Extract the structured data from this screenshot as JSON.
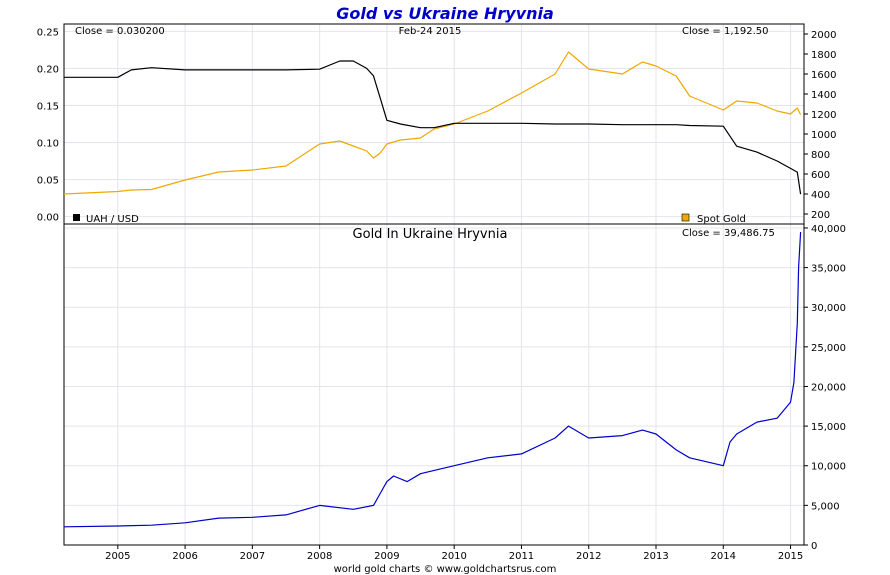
{
  "chart_data": [
    {
      "type": "line",
      "title": "Gold vs Ukraine Hryvnia",
      "date_label": "Feb-24  2015",
      "left_close_label": "Close = 0.030200",
      "right_close_label": "Close = 1,192.50",
      "x_ticks": [
        "2005",
        "2006",
        "2007",
        "2008",
        "2009",
        "2010",
        "2011",
        "2012",
        "2013",
        "2014",
        "2015"
      ],
      "x": [
        2004.2,
        2005.0,
        2005.2,
        2005.5,
        2006.0,
        2006.5,
        2007.0,
        2007.5,
        2008.0,
        2008.3,
        2008.5,
        2008.7,
        2008.8,
        2008.9,
        2009.0,
        2009.2,
        2009.5,
        2009.7,
        2010.0,
        2010.5,
        2011.0,
        2011.5,
        2011.7,
        2012.0,
        2012.5,
        2012.8,
        2013.0,
        2013.3,
        2013.5,
        2014.0,
        2014.2,
        2014.5,
        2014.8,
        2015.0,
        2015.1,
        2015.15
      ],
      "left_axis": {
        "ylim": [
          -0.01,
          0.26
        ],
        "ticks": [
          "0.00",
          "0.05",
          "0.10",
          "0.15",
          "0.20",
          "0.25"
        ],
        "tick_values": [
          0,
          0.05,
          0.1,
          0.15,
          0.2,
          0.25
        ]
      },
      "right_axis": {
        "ylim": [
          100,
          2100
        ],
        "ticks": [
          "200",
          "400",
          "600",
          "800",
          "1000",
          "1200",
          "1400",
          "1600",
          "1800",
          "2000"
        ],
        "tick_values": [
          200,
          400,
          600,
          800,
          1000,
          1200,
          1400,
          1600,
          1800,
          2000
        ]
      },
      "series": [
        {
          "name": "UAH / USD",
          "axis": "left",
          "color": "#000000",
          "values": [
            0.188,
            0.188,
            0.198,
            0.201,
            0.198,
            0.198,
            0.198,
            0.198,
            0.199,
            0.21,
            0.21,
            0.2,
            0.19,
            0.16,
            0.13,
            0.125,
            0.12,
            0.12,
            0.126,
            0.126,
            0.126,
            0.125,
            0.125,
            0.125,
            0.124,
            0.124,
            0.124,
            0.124,
            0.123,
            0.122,
            0.095,
            0.087,
            0.075,
            0.065,
            0.06,
            0.0302
          ]
        },
        {
          "name": "Spot Gold",
          "axis": "right",
          "color": "#f0a800",
          "values": [
            400,
            425,
            440,
            445,
            540,
            620,
            640,
            680,
            900,
            930,
            880,
            830,
            760,
            810,
            900,
            940,
            960,
            1050,
            1100,
            1230,
            1410,
            1600,
            1820,
            1650,
            1600,
            1720,
            1680,
            1580,
            1380,
            1240,
            1330,
            1310,
            1230,
            1200,
            1260,
            1192.5
          ]
        }
      ],
      "legend": "bottom"
    },
    {
      "type": "line",
      "title": "Gold In Ukraine Hryvnia",
      "close_label": "Close = 39,486.75",
      "credit": "world gold charts © www.goldchartsrus.com",
      "ylim": [
        0,
        40500
      ],
      "y_ticks": [
        "0",
        "5,000",
        "10,000",
        "15,000",
        "20,000",
        "25,000",
        "30,000",
        "35,000",
        "40,000"
      ],
      "y_tick_values": [
        0,
        5000,
        10000,
        15000,
        20000,
        25000,
        30000,
        35000,
        40000
      ],
      "x_ticks": [
        "2005",
        "2006",
        "2007",
        "2008",
        "2009",
        "2010",
        "2011",
        "2012",
        "2013",
        "2014",
        "2015"
      ],
      "series": [
        {
          "color": "#0000cc",
          "x": [
            2004.2,
            2005.0,
            2005.5,
            2006.0,
            2006.5,
            2007.0,
            2007.5,
            2008.0,
            2008.5,
            2008.8,
            2008.9,
            2009.0,
            2009.1,
            2009.3,
            2009.5,
            2010.0,
            2010.5,
            2011.0,
            2011.5,
            2011.7,
            2012.0,
            2012.5,
            2012.8,
            2013.0,
            2013.3,
            2013.5,
            2014.0,
            2014.1,
            2014.2,
            2014.5,
            2014.8,
            2015.0,
            2015.05,
            2015.1,
            2015.12,
            2015.15
          ],
          "values": [
            2300,
            2400,
            2500,
            2800,
            3400,
            3500,
            3800,
            5000,
            4500,
            5000,
            6500,
            8000,
            8700,
            8000,
            9000,
            10000,
            11000,
            11500,
            13500,
            15000,
            13500,
            13800,
            14500,
            14000,
            12000,
            11000,
            10000,
            13000,
            14000,
            15500,
            16000,
            18000,
            20500,
            28000,
            35000,
            39486.75
          ]
        }
      ]
    }
  ]
}
